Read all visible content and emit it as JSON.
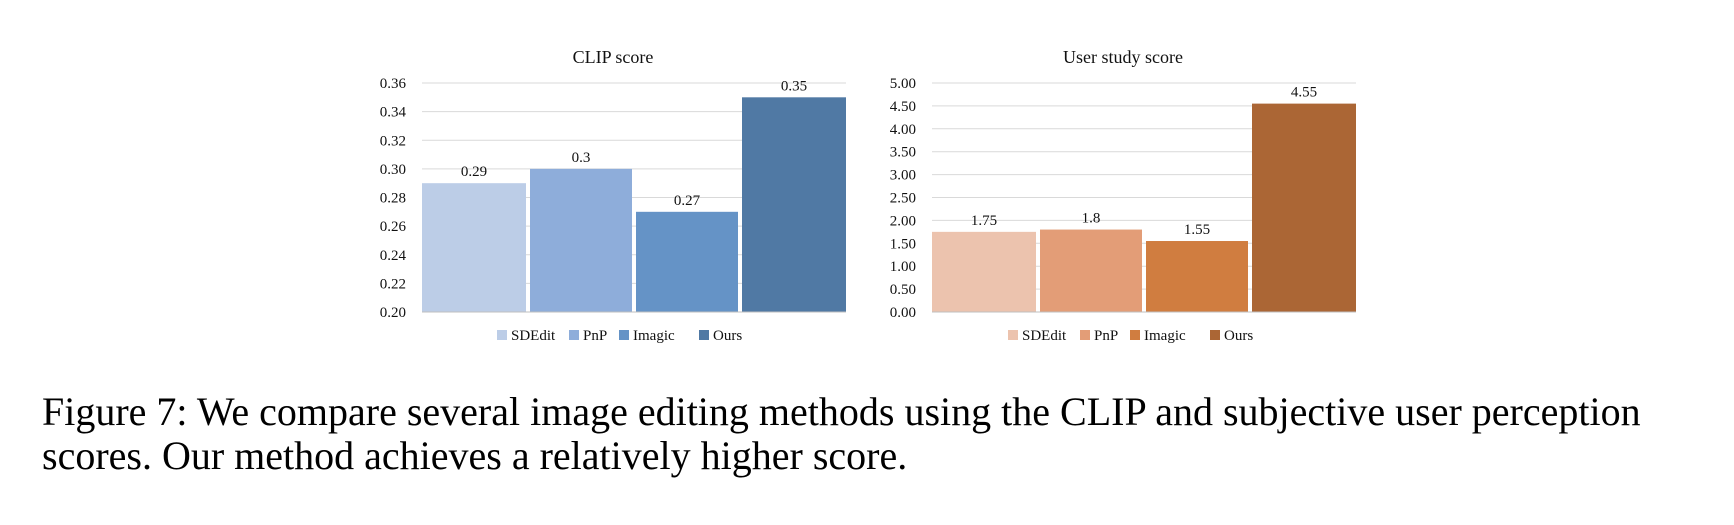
{
  "chart_data": [
    {
      "type": "bar",
      "title": "CLIP score",
      "categories": [
        "SDEdit",
        "PnP",
        "Imagic",
        "Ours"
      ],
      "values": [
        0.29,
        0.3,
        0.27,
        0.35
      ],
      "data_labels": [
        "0.29",
        "0.3",
        "0.27",
        "0.35"
      ],
      "ylim": [
        0.2,
        0.36
      ],
      "yticks": [
        "0.20",
        "0.22",
        "0.24",
        "0.26",
        "0.28",
        "0.30",
        "0.32",
        "0.34",
        "0.36"
      ],
      "xlabel": "",
      "ylabel": "",
      "grid": true,
      "legend_position": "bottom",
      "colors": [
        "#bccde7",
        "#8eadda",
        "#6593c6",
        "#5079a4"
      ]
    },
    {
      "type": "bar",
      "title": "User study score",
      "categories": [
        "SDEdit",
        "PnP",
        "Imagic",
        "Ours"
      ],
      "values": [
        1.75,
        1.8,
        1.55,
        4.55
      ],
      "data_labels": [
        "1.75",
        "1.8",
        "1.55",
        "4.55"
      ],
      "ylim": [
        0.0,
        5.0
      ],
      "yticks": [
        "0.00",
        "0.50",
        "1.00",
        "1.50",
        "2.00",
        "2.50",
        "3.00",
        "3.50",
        "4.00",
        "4.50",
        "5.00"
      ],
      "xlabel": "",
      "ylabel": "",
      "grid": true,
      "legend_position": "bottom",
      "colors": [
        "#ecc3ae",
        "#e39d77",
        "#d07d40",
        "#ab6635"
      ]
    }
  ],
  "caption": {
    "line1": "Figure 7: We compare several image editing methods using the CLIP and subjective user perception",
    "line2": "scores. Our method achieves a relatively higher score."
  }
}
